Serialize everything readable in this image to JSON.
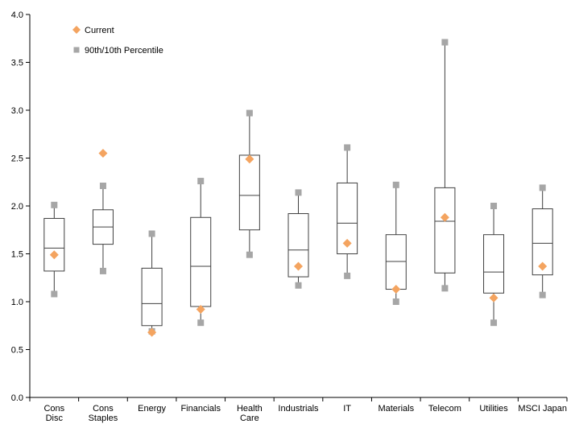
{
  "chart_data": {
    "type": "box",
    "title": "",
    "xlabel": "",
    "ylabel": "",
    "ylim": [
      0,
      4.0
    ],
    "yticks": [
      "0.0",
      "0.5",
      "1.0",
      "1.5",
      "2.0",
      "2.5",
      "3.0",
      "3.5",
      "4.0"
    ],
    "grid": false,
    "legend_position": "top-left",
    "legend": [
      {
        "label": "Current",
        "marker": "diamond",
        "color": "#F4A460"
      },
      {
        "label": "90th/10th Percentile",
        "marker": "square",
        "color": "#A6A6A6"
      }
    ],
    "categories": [
      {
        "label": [
          "Cons",
          "Disc"
        ],
        "p10": 1.08,
        "q1": 1.32,
        "median": 1.56,
        "q3": 1.87,
        "p90": 2.01,
        "current": 1.49
      },
      {
        "label": [
          "Cons",
          "Staples"
        ],
        "p10": 1.32,
        "q1": 1.6,
        "median": 1.78,
        "q3": 1.96,
        "p90": 2.21,
        "current": 2.55
      },
      {
        "label": [
          "Energy"
        ],
        "p10": 0.69,
        "q1": 0.75,
        "median": 0.98,
        "q3": 1.35,
        "p90": 1.71,
        "current": 0.68
      },
      {
        "label": [
          "Financials"
        ],
        "p10": 0.78,
        "q1": 0.95,
        "median": 1.37,
        "q3": 1.88,
        "p90": 2.26,
        "current": 0.92
      },
      {
        "label": [
          "Health",
          "Care"
        ],
        "p10": 1.49,
        "q1": 1.75,
        "median": 2.11,
        "q3": 2.53,
        "p90": 2.97,
        "current": 2.49
      },
      {
        "label": [
          "Industrials"
        ],
        "p10": 1.17,
        "q1": 1.26,
        "median": 1.54,
        "q3": 1.92,
        "p90": 2.14,
        "current": 1.37
      },
      {
        "label": [
          "IT"
        ],
        "p10": 1.27,
        "q1": 1.5,
        "median": 1.82,
        "q3": 2.24,
        "p90": 2.61,
        "current": 1.61
      },
      {
        "label": [
          "Materials"
        ],
        "p10": 1.0,
        "q1": 1.13,
        "median": 1.42,
        "q3": 1.7,
        "p90": 2.22,
        "current": 1.13
      },
      {
        "label": [
          "Telecom"
        ],
        "p10": 1.14,
        "q1": 1.3,
        "median": 1.84,
        "q3": 2.19,
        "p90": 3.71,
        "current": 1.88
      },
      {
        "label": [
          "Utilities"
        ],
        "p10": 0.78,
        "q1": 1.09,
        "median": 1.31,
        "q3": 1.7,
        "p90": 2.0,
        "current": 1.04
      },
      {
        "label": [
          "MSCI Japan"
        ],
        "p10": 1.07,
        "q1": 1.28,
        "median": 1.61,
        "q3": 1.97,
        "p90": 2.19,
        "current": 1.37
      }
    ],
    "colors": {
      "current": "#F4A460",
      "percentile": "#A6A6A6",
      "box": "#404040",
      "axis": "#000000"
    }
  }
}
